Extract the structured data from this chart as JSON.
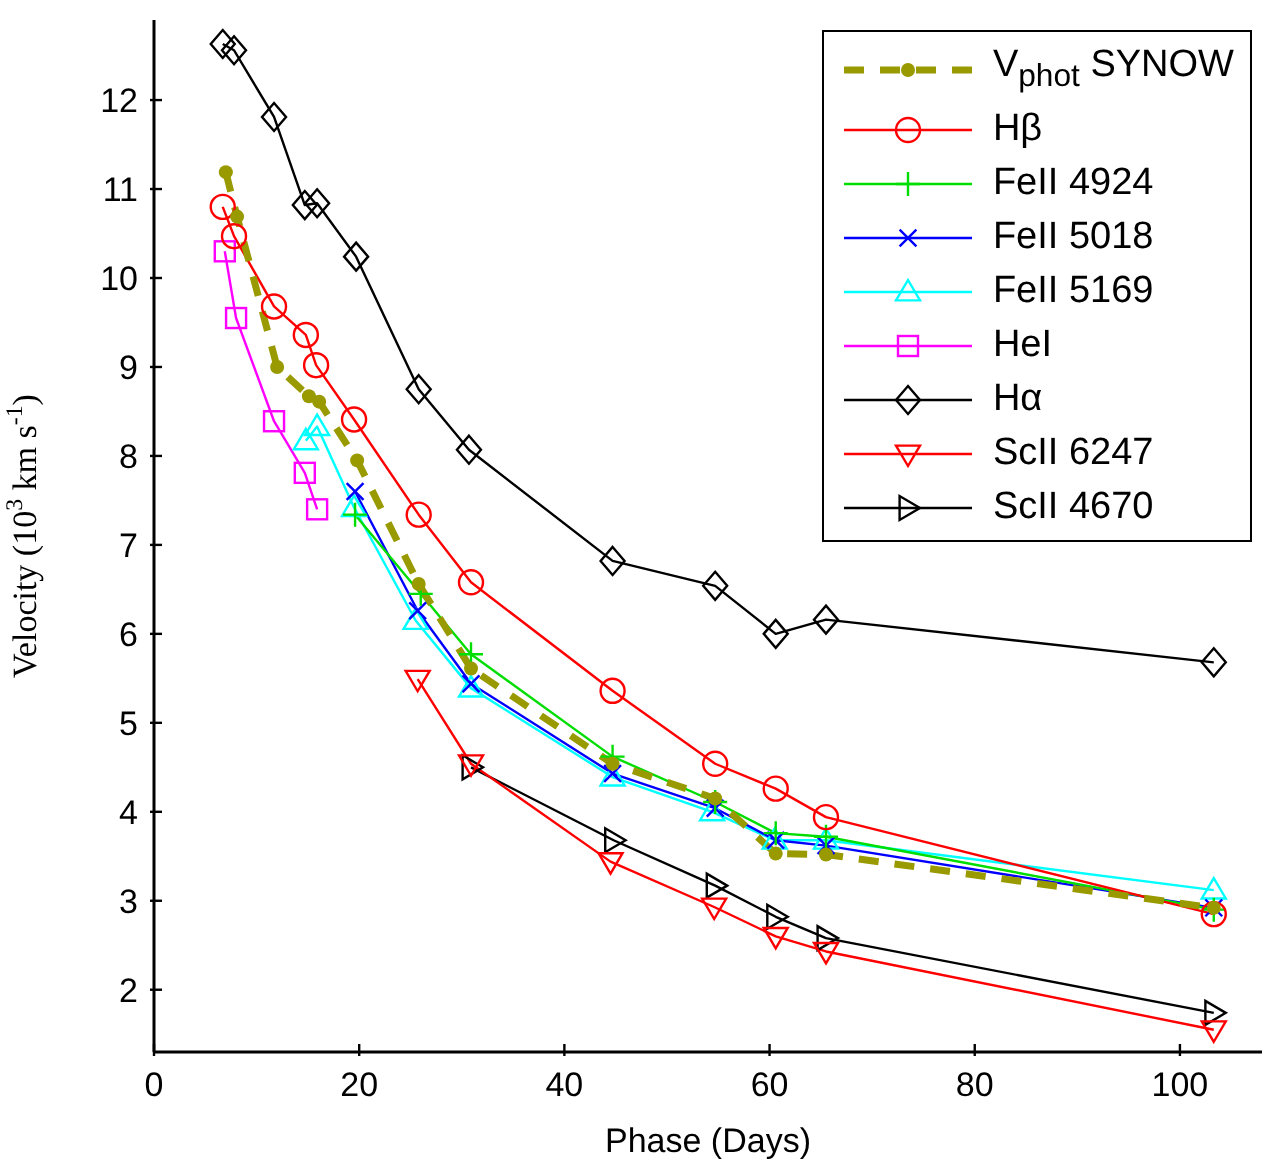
{
  "chart_data": {
    "type": "line",
    "xlabel": "Phase (Days)",
    "ylabel": "Velocity (10$^{3}$ km s$^{-1}$)",
    "xlim": [
      0,
      108
    ],
    "ylim": [
      1.3,
      12.9
    ],
    "xticks": [
      0,
      20,
      40,
      60,
      80,
      100
    ],
    "yticks": [
      2,
      3,
      4,
      5,
      6,
      7,
      8,
      9,
      10,
      11,
      12
    ],
    "legend": "top right",
    "series": [
      {
        "name": "V$_{phot}$ SYNOW",
        "color": "#999900",
        "marker": "circle",
        "line_style": "dashed",
        "x": [
          7.0,
          8.1,
          12.0,
          15.1,
          16.1,
          19.8,
          25.8,
          30.9,
          44.7,
          54.7,
          60.6,
          65.5,
          103.3
        ],
        "values": [
          11.19,
          10.69,
          9.0,
          8.67,
          8.61,
          7.95,
          6.56,
          5.61,
          4.54,
          4.15,
          3.53,
          3.52,
          2.92
        ]
      },
      {
        "name": "Hβ",
        "color": "#ff0000",
        "marker": "circle",
        "x": [
          6.7,
          7.8,
          11.7,
          14.8,
          15.8,
          19.5,
          25.8,
          30.9,
          44.7,
          54.7,
          60.6,
          65.5,
          103.3
        ],
        "values": [
          10.8,
          10.47,
          9.68,
          9.36,
          9.02,
          8.41,
          7.34,
          6.58,
          5.36,
          4.54,
          4.26,
          3.94,
          2.85
        ]
      },
      {
        "name": "FeII 4924",
        "color": "#00dd00",
        "marker": "cross",
        "x": [
          19.6,
          26.0,
          30.9,
          44.7,
          54.7,
          60.6,
          65.5,
          103.3
        ],
        "values": [
          7.34,
          6.45,
          5.77,
          4.62,
          4.11,
          3.76,
          3.72,
          2.9
        ]
      },
      {
        "name": "FeII 5018",
        "color": "#0000ff",
        "marker": "x",
        "x": [
          19.6,
          25.7,
          30.9,
          44.7,
          54.7,
          60.6,
          65.5,
          103.3
        ],
        "values": [
          7.6,
          6.26,
          5.44,
          4.43,
          4.04,
          3.68,
          3.62,
          2.92
        ]
      },
      {
        "name": "FeII 5169",
        "color": "#00ffff",
        "marker": "triangle",
        "x": [
          14.8,
          15.9,
          19.5,
          25.5,
          30.9,
          44.7,
          54.4,
          60.5,
          65.5,
          103.3
        ],
        "values": [
          8.17,
          8.33,
          7.42,
          6.15,
          5.39,
          4.39,
          4.0,
          3.68,
          3.68,
          3.12
        ]
      },
      {
        "name": "HeI",
        "color": "#ff00ff",
        "marker": "square",
        "x": [
          6.9,
          8.0,
          11.7,
          14.7,
          15.9
        ],
        "values": [
          10.3,
          9.55,
          8.39,
          7.81,
          7.4
        ]
      },
      {
        "name": "Hα",
        "color": "#000000",
        "marker": "diamond",
        "x": [
          6.7,
          7.8,
          11.7,
          14.7,
          15.9,
          19.7,
          25.8,
          30.7,
          44.7,
          54.7,
          60.6,
          65.5,
          103.3
        ],
        "values": [
          12.63,
          12.56,
          11.81,
          10.82,
          10.84,
          10.24,
          8.75,
          8.07,
          6.82,
          6.54,
          6.0,
          6.16,
          5.68
        ]
      },
      {
        "name": "ScII 6247",
        "color": "#ff0000",
        "marker": "triangle-down",
        "x": [
          25.7,
          30.9,
          44.5,
          54.6,
          60.6,
          65.5,
          103.3
        ],
        "values": [
          5.49,
          4.54,
          3.44,
          2.93,
          2.6,
          2.43,
          1.55
        ]
      },
      {
        "name": "ScII 4670",
        "color": "#000000",
        "marker": "triangle-right",
        "x": [
          30.9,
          44.8,
          54.7,
          60.6,
          65.5,
          103.3
        ],
        "values": [
          4.5,
          3.68,
          3.17,
          2.82,
          2.58,
          1.74
        ]
      }
    ]
  }
}
